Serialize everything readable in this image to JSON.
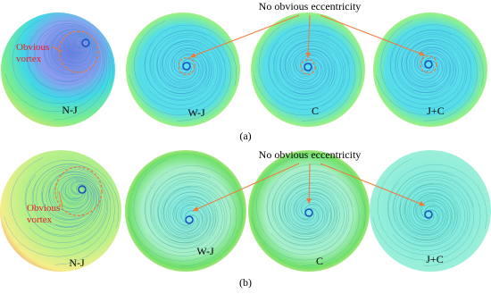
{
  "rows": [
    {
      "caption": "(a)",
      "callout": "No obvious eccentricity",
      "panels": [
        {
          "label": "N-J",
          "note": "Obvious vortex"
        },
        {
          "label": "W-J"
        },
        {
          "label": "C"
        },
        {
          "label": "J+C"
        }
      ]
    },
    {
      "caption": "(b)",
      "callout": "No obvious eccentricity",
      "panels": [
        {
          "label": "N-J",
          "note": "Obvious vortex"
        },
        {
          "label": "W-J"
        },
        {
          "label": "C"
        },
        {
          "label": "J+C"
        }
      ]
    }
  ]
}
